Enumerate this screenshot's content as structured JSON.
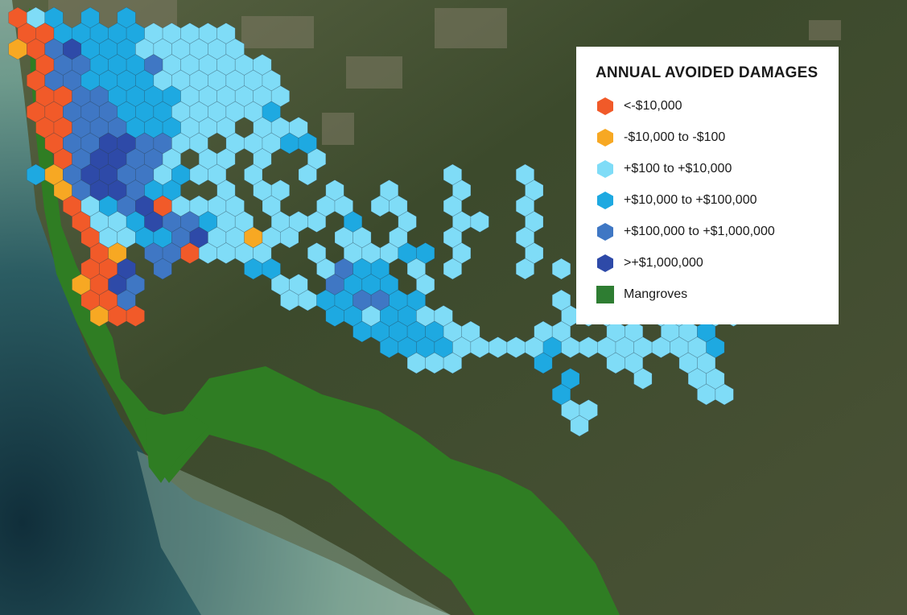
{
  "legend": {
    "title": "ANNUAL AVOIDED DAMAGES",
    "items": [
      {
        "label": "<-$10,000",
        "color": "#f15a29",
        "shape": "hexagon"
      },
      {
        "label": "-$10,000 to -$100",
        "color": "#f7a823",
        "shape": "hexagon"
      },
      {
        "label": "+$100 to +$10,000",
        "color": "#7fdcf7",
        "shape": "hexagon"
      },
      {
        "label": "+$10,000 to +$100,000",
        "color": "#1ea9e1",
        "shape": "hexagon"
      },
      {
        "label": "+$100,000 to +$1,000,000",
        "color": "#3f77c4",
        "shape": "hexagon"
      },
      {
        "label": ">+$1,000,000",
        "color": "#2e4aa8",
        "shape": "hexagon"
      },
      {
        "label": "Mangroves",
        "color": "#2e7d32",
        "shape": "square"
      }
    ]
  },
  "map_colors": {
    "ocean_deep": "#1f4752",
    "ocean_shallow": "#5f8e86",
    "land": "#3f4f30",
    "mangrove": "#2f7d23"
  }
}
